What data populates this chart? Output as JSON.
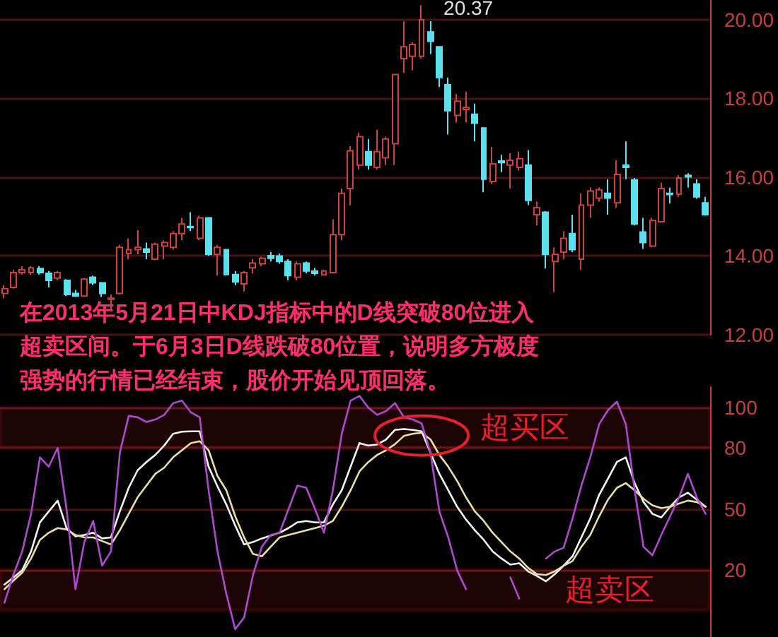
{
  "chart_data": [
    {
      "type": "candlestick",
      "categories": [
        null,
        null,
        null,
        null,
        null,
        null,
        null,
        null,
        null,
        null,
        null,
        null,
        null,
        null,
        null,
        null,
        null,
        null,
        null,
        null,
        null,
        null,
        null,
        null,
        null,
        null,
        null,
        null,
        null,
        null,
        null,
        null,
        null,
        null,
        null,
        null,
        null,
        null,
        null,
        null,
        null,
        null,
        null,
        null,
        null,
        null,
        null,
        null,
        null,
        null,
        null,
        null,
        null,
        null,
        null,
        null,
        null,
        null,
        null,
        null,
        null,
        null,
        null,
        null,
        null,
        null,
        null,
        null,
        null,
        null,
        null,
        null,
        null,
        null,
        null,
        null,
        null,
        null,
        null,
        null
      ],
      "ohlc": [
        [
          13.05,
          13.26,
          12.93,
          13.17
        ],
        [
          13.2,
          13.65,
          13.17,
          13.58
        ],
        [
          13.58,
          13.74,
          13.53,
          13.65
        ],
        [
          13.58,
          13.74,
          13.52,
          13.7
        ],
        [
          13.68,
          13.74,
          13.53,
          13.58
        ],
        [
          13.56,
          13.62,
          13.2,
          13.38
        ],
        [
          13.44,
          13.62,
          13.38,
          13.58
        ],
        [
          13.38,
          13.41,
          12.98,
          13.02
        ],
        [
          13.05,
          13.14,
          12.96,
          12.98
        ],
        [
          12.98,
          13.44,
          12.96,
          13.41
        ],
        [
          13.46,
          13.5,
          13.26,
          13.32
        ],
        [
          13.32,
          13.34,
          12.96,
          13.05
        ],
        [
          12.9,
          13.02,
          12.6,
          12.93
        ],
        [
          13.05,
          14.28,
          13.02,
          14.22
        ],
        [
          14.06,
          14.45,
          13.92,
          14.16
        ],
        [
          14.16,
          14.66,
          14.04,
          14.22
        ],
        [
          14.18,
          14.34,
          13.92,
          14.1
        ],
        [
          13.92,
          14.34,
          13.89,
          14.3
        ],
        [
          14.25,
          14.4,
          13.92,
          14.34
        ],
        [
          14.22,
          14.63,
          14.16,
          14.57
        ],
        [
          14.57,
          14.97,
          14.4,
          14.81
        ],
        [
          14.75,
          15.11,
          14.63,
          14.72
        ],
        [
          14.45,
          15.02,
          14.4,
          14.97
        ],
        [
          14.97,
          14.99,
          14.01,
          14.04
        ],
        [
          14.04,
          14.28,
          13.5,
          14.22
        ],
        [
          14.16,
          14.18,
          13.5,
          13.53
        ],
        [
          13.53,
          13.62,
          13.26,
          13.34
        ],
        [
          13.29,
          13.62,
          13.1,
          13.58
        ],
        [
          13.7,
          13.92,
          13.56,
          13.82
        ],
        [
          13.8,
          13.98,
          13.74,
          13.94
        ],
        [
          14.01,
          14.1,
          13.86,
          13.94
        ],
        [
          14,
          14.06,
          13.8,
          13.86
        ],
        [
          13.86,
          13.92,
          13.38,
          13.5
        ],
        [
          13.46,
          13.86,
          13.38,
          13.8
        ],
        [
          13.82,
          13.86,
          13.56,
          13.62
        ],
        [
          13.62,
          13.7,
          13.5,
          13.56
        ],
        [
          13.52,
          13.65,
          13.5,
          13.62
        ],
        [
          13.58,
          14.93,
          13.56,
          14.54
        ],
        [
          14.54,
          15.71,
          14.4,
          15.59
        ],
        [
          15.71,
          16.79,
          15.29,
          16.67
        ],
        [
          16.31,
          17.13,
          16.19,
          17.03
        ],
        [
          16.65,
          16.97,
          16.19,
          16.31
        ],
        [
          16.25,
          17.21,
          16.19,
          16.65
        ],
        [
          16.49,
          17.03,
          16.31,
          16.97
        ],
        [
          16.85,
          18.61,
          16.31,
          18.61
        ],
        [
          19.01,
          19.96,
          18.65,
          19.31
        ],
        [
          19.07,
          19.43,
          18.71,
          19.37
        ],
        [
          19.07,
          20.37,
          19.01,
          20
        ],
        [
          19.69,
          19.96,
          19.13,
          19.45
        ],
        [
          19.31,
          19.33,
          18.29,
          18.53
        ],
        [
          18.35,
          18.53,
          17.09,
          17.69
        ],
        [
          17.57,
          18.11,
          17.39,
          17.93
        ],
        [
          17.72,
          18.17,
          17.39,
          17.77
        ],
        [
          17.6,
          17.87,
          16.91,
          17.37
        ],
        [
          17.25,
          17.27,
          15.62,
          15.95
        ],
        [
          15.89,
          16.77,
          15.83,
          16.34
        ],
        [
          16.41,
          16.57,
          16.13,
          16.37
        ],
        [
          16.31,
          16.61,
          15.71,
          16.43
        ],
        [
          16.25,
          16.65,
          16.17,
          16.47
        ],
        [
          16.31,
          16.69,
          15.29,
          15.41
        ],
        [
          15.05,
          15.38,
          14.78,
          15.23
        ],
        [
          15.11,
          15.14,
          13.68,
          14.04
        ],
        [
          13.86,
          14.22,
          13.08,
          14.04
        ],
        [
          14.1,
          14.63,
          13.92,
          14.45
        ],
        [
          14.57,
          15.05,
          14.1,
          14.16
        ],
        [
          13.92,
          15.59,
          13.65,
          15.29
        ],
        [
          15.29,
          15.74,
          14.97,
          15.65
        ],
        [
          15.47,
          15.74,
          15.38,
          15.68
        ],
        [
          15.59,
          15.95,
          15.05,
          15.47
        ],
        [
          15.35,
          16.43,
          15.23,
          16.07
        ],
        [
          16.31,
          16.91,
          15.95,
          16.25
        ],
        [
          15.93,
          15.98,
          14.78,
          14.81
        ],
        [
          14.61,
          14.97,
          14.18,
          14.34
        ],
        [
          14.25,
          14.97,
          14.22,
          14.9
        ],
        [
          14.87,
          15.86,
          14.85,
          15.71
        ],
        [
          15.59,
          15.74,
          15.33,
          15.56
        ],
        [
          15.57,
          16.05,
          15.5,
          15.98
        ],
        [
          16.05,
          16.1,
          15.74,
          16.01
        ],
        [
          15.83,
          15.95,
          15.45,
          15.5
        ],
        [
          15.35,
          15.5,
          15.02,
          15.05
        ]
      ],
      "colors": [
        "#d0403c",
        "#d0403c",
        "#d0403c",
        "#d0403c",
        "#5ce0ee",
        "#5ce0ee",
        "#d0403c",
        "#5ce0ee",
        "#5ce0ee",
        "#d0403c",
        "#5ce0ee",
        "#5ce0ee",
        "#d0403c",
        "#d0403c",
        "#d0403c",
        "#d0403c",
        "#5ce0ee",
        "#d0403c",
        "#d0403c",
        "#d0403c",
        "#d0403c",
        "#5ce0ee",
        "#d0403c",
        "#5ce0ee",
        "#d0403c",
        "#5ce0ee",
        "#5ce0ee",
        "#d0403c",
        "#d0403c",
        "#d0403c",
        "#5ce0ee",
        "#5ce0ee",
        "#5ce0ee",
        "#d0403c",
        "#5ce0ee",
        "#5ce0ee",
        "#d0403c",
        "#d0403c",
        "#d0403c",
        "#d0403c",
        "#d0403c",
        "#5ce0ee",
        "#d0403c",
        "#d0403c",
        "#d0403c",
        "#d0403c",
        "#d0403c",
        "#d0403c",
        "#5ce0ee",
        "#5ce0ee",
        "#5ce0ee",
        "#d0403c",
        "#d0403c",
        "#5ce0ee",
        "#5ce0ee",
        "#d0403c",
        "#5ce0ee",
        "#d0403c",
        "#d0403c",
        "#5ce0ee",
        "#d0403c",
        "#5ce0ee",
        "#d0403c",
        "#d0403c",
        "#5ce0ee",
        "#d0403c",
        "#d0403c",
        "#d0403c",
        "#5ce0ee",
        "#d0403c",
        "#5ce0ee",
        "#5ce0ee",
        "#5ce0ee",
        "#d0403c",
        "#d0403c",
        "#5ce0ee",
        "#d0403c",
        "#5ce0ee",
        "#5ce0ee",
        "#5ce0ee"
      ],
      "ylim": [
        12,
        20.5
      ],
      "yticks": [
        {
          "value": 12,
          "label": "12.00"
        },
        {
          "value": 14,
          "label": "14.00"
        },
        {
          "value": 16,
          "label": "16.00"
        },
        {
          "value": 18,
          "label": "18.00"
        },
        {
          "value": 20,
          "label": "20.00"
        }
      ],
      "grid": "y",
      "tick_labels": "y",
      "annotations": [
        "20.37",
        "在2013年5月21日中KDJ指标中的D线突破80位进入超卖区间。于6月3日D线跌破80位置，说明多方极度强势的行情已经结束，股价开始见顶回落。"
      ]
    },
    {
      "type": "line",
      "categories": [
        null,
        null,
        null,
        null,
        null,
        null,
        null,
        null,
        null,
        null,
        null,
        null,
        null,
        null,
        null,
        null,
        null,
        null,
        null,
        null,
        null,
        null,
        null,
        null,
        null,
        null,
        null,
        null,
        null,
        null,
        null,
        null,
        null,
        null,
        null,
        null,
        null,
        null,
        null,
        null,
        null,
        null,
        null,
        null,
        null,
        null,
        null,
        null,
        null,
        null,
        null,
        null,
        null,
        null,
        null,
        null,
        null,
        null,
        null,
        null,
        null,
        null,
        null,
        null,
        null,
        null,
        null,
        null,
        null,
        null,
        null,
        null,
        null,
        null,
        null,
        null,
        null,
        null,
        null,
        null
      ],
      "series": [
        {
          "color": "#f4f4f4",
          "values": [
            12.8,
            16.3,
            19.8,
            29.1,
            43.4,
            48.8,
            54.1,
            40.6,
            36.5,
            37.2,
            38.3,
            35.5,
            36,
            48.8,
            60.4,
            69,
            73.1,
            76.6,
            81.2,
            87,
            88,
            88.2,
            88.2,
            70.8,
            61.1,
            52.2,
            41.8,
            32.5,
            33.7,
            35.5,
            36.9,
            38.3,
            40.6,
            43.4,
            44.1,
            43.4,
            43.4,
            52.2,
            59.2,
            70.8,
            82.4,
            81.2,
            81.7,
            84.2,
            88.9,
            89.3,
            88.9,
            88.2,
            77.7,
            67.3,
            59.2,
            51.1,
            44.8,
            39.5,
            34.8,
            29.1,
            25.6,
            22.6,
            23.3,
            19.3,
            17,
            14.4,
            17.9,
            22.1,
            26.7,
            36,
            45.3,
            56.9,
            65,
            73.1,
            75.4,
            62.7,
            53.4,
            47.6,
            45.8,
            51.1,
            55.7,
            58,
            54.6,
            51.1
          ]
        },
        {
          "color": "#e8dfa0",
          "values": [
            10.5,
            14.7,
            18.6,
            25.6,
            34.8,
            38.3,
            40.6,
            39.9,
            37.2,
            36,
            36,
            34.2,
            32.5,
            39.5,
            47.6,
            55.7,
            61.5,
            67.3,
            70.3,
            75.4,
            78.9,
            82.4,
            83.3,
            78.9,
            66.2,
            59.2,
            46.4,
            36,
            27.9,
            26.7,
            31.4,
            36,
            37.2,
            38.3,
            39.5,
            40.6,
            41.8,
            44.1,
            51.1,
            59.2,
            68.5,
            73.1,
            76.6,
            78.9,
            81.9,
            85.9,
            87,
            87.5,
            84.2,
            76.6,
            70.8,
            63.8,
            55.7,
            48.8,
            44.1,
            38.3,
            33.7,
            29.1,
            25.6,
            21,
            17.9,
            17.5,
            19.3,
            22.1,
            24.4,
            31.4,
            37.2,
            46.4,
            54.6,
            60.4,
            62.7,
            59.2,
            55,
            51.8,
            50.4,
            51.1,
            52.7,
            54.1,
            53.4,
            51.1
          ]
        },
        {
          "color": "#b048d0",
          "values": [
            3.9,
            17.5,
            29.1,
            47.6,
            75.4,
            70.8,
            80.1,
            49.9,
            10.5,
            33.7,
            44.1,
            22.1,
            29.1,
            77.7,
            95.8,
            95.1,
            92.8,
            94,
            96.3,
            102,
            103.3,
            97.5,
            95.1,
            59.2,
            29.1,
            8.2,
            -9.2,
            -3.4,
            17.5,
            31.4,
            37.2,
            38.3,
            49.9,
            61.5,
            60.4,
            49.9,
            38.3,
            59.2,
            87,
            103.3,
            105.6,
            99.8,
            96.3,
            98.2,
            102.1,
            95.1,
            94,
            92.1,
            77.7,
            48.8,
            36,
            19.8,
            10.5,
            null,
            null,
            null,
            null,
            16.3,
            5.9,
            null,
            null,
            25.6,
            29.1,
            30.9,
            45.3,
            61.5,
            75.4,
            91.7,
            98.6,
            102.8,
            91.7,
            59.2,
            31.4,
            27.2,
            37.2,
            46.4,
            55.7,
            67.3,
            55.7,
            47.6
          ]
        }
      ],
      "ylim": [
        -13,
        110
      ],
      "yticks": [
        20,
        50,
        80,
        100
      ],
      "grid": "y",
      "tick_labels": "y",
      "line_style": "solid",
      "bands": [
        {
          "axis": "y",
          "from": 80,
          "to": 100,
          "label": "超买区",
          "color": "#e8202c"
        },
        {
          "axis": "y",
          "from": 0,
          "to": 20,
          "label": "超卖区",
          "color": "#e8202c"
        }
      ]
    }
  ]
}
